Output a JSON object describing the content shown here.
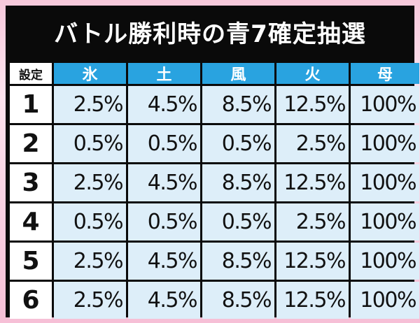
{
  "title": "バトル勝利時の青7確定抽選",
  "table": {
    "corner_label": "設定",
    "headers": [
      "氷",
      "土",
      "風",
      "火",
      "母"
    ],
    "rows": [
      {
        "setting": "1",
        "values": [
          "2.5%",
          "4.5%",
          "8.5%",
          "12.5%",
          "100%"
        ]
      },
      {
        "setting": "2",
        "values": [
          "0.5%",
          "0.5%",
          "0.5%",
          "2.5%",
          "100%"
        ]
      },
      {
        "setting": "3",
        "values": [
          "2.5%",
          "4.5%",
          "8.5%",
          "12.5%",
          "100%"
        ]
      },
      {
        "setting": "4",
        "values": [
          "0.5%",
          "0.5%",
          "0.5%",
          "2.5%",
          "100%"
        ]
      },
      {
        "setting": "5",
        "values": [
          "2.5%",
          "4.5%",
          "8.5%",
          "12.5%",
          "100%"
        ]
      },
      {
        "setting": "6",
        "values": [
          "2.5%",
          "4.5%",
          "8.5%",
          "12.5%",
          "100%"
        ]
      }
    ]
  },
  "colors": {
    "header_blue": "#29a3e0",
    "cell_light_blue": "#ddeef9",
    "frame_black": "#0a0a0a",
    "background_pink": "#f9d2e3"
  }
}
